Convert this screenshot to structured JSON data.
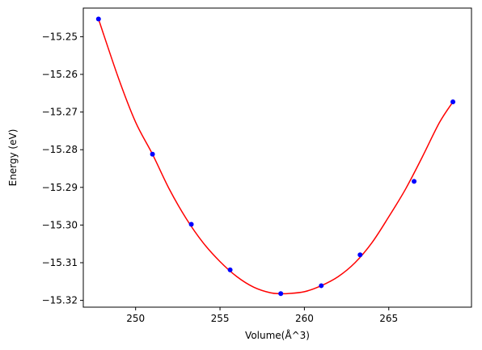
{
  "chart_data": {
    "type": "scatter",
    "title": "",
    "xlabel": "Volume(Å^3)",
    "ylabel": "Energy (eV)",
    "xlim": [
      246.9,
      269.9
    ],
    "ylim": [
      -15.3218,
      -15.2424
    ],
    "xticks": [
      250,
      255,
      260,
      265
    ],
    "yticks": [
      -15.25,
      -15.26,
      -15.27,
      -15.28,
      -15.29,
      -15.3,
      -15.31,
      -15.32
    ],
    "xtick_labels": [
      "250",
      "255",
      "260",
      "265"
    ],
    "ytick_labels": [
      "−15.25",
      "−15.26",
      "−15.27",
      "−15.28",
      "−15.29",
      "−15.30",
      "−15.31",
      "−15.32"
    ],
    "grid": false,
    "series": [
      {
        "kind": "points",
        "color": "#0000ff",
        "x": [
          247.8,
          251.0,
          253.3,
          255.6,
          258.6,
          261.0,
          263.3,
          266.5,
          268.8
        ],
        "y": [
          -15.2453,
          -15.2812,
          -15.2998,
          -15.3119,
          -15.3182,
          -15.3161,
          -15.3079,
          -15.2884,
          -15.2673
        ]
      },
      {
        "kind": "fit-curve",
        "color": "#ff0000",
        "x": [
          247.8,
          249.0,
          250.0,
          251.0,
          252.0,
          253.0,
          254.0,
          255.0,
          256.0,
          257.0,
          258.0,
          258.6,
          259.0,
          260.0,
          261.0,
          262.0,
          263.0,
          264.0,
          265.0,
          266.0,
          267.0,
          268.0,
          268.8
        ],
        "y": [
          -15.2453,
          -15.2612,
          -15.2727,
          -15.2812,
          -15.2905,
          -15.2983,
          -15.3047,
          -15.3097,
          -15.3137,
          -15.3165,
          -15.318,
          -15.3182,
          -15.3182,
          -15.3177,
          -15.3161,
          -15.3137,
          -15.31,
          -15.3047,
          -15.2978,
          -15.2904,
          -15.2818,
          -15.2728,
          -15.2673
        ]
      }
    ]
  }
}
